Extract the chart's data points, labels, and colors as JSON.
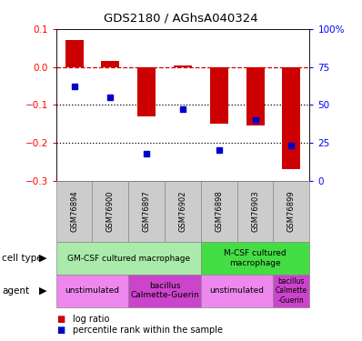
{
  "title": "GDS2180 / AGhsA040324",
  "samples": [
    "GSM76894",
    "GSM76900",
    "GSM76897",
    "GSM76902",
    "GSM76898",
    "GSM76903",
    "GSM76899"
  ],
  "log_ratio": [
    0.07,
    0.015,
    -0.13,
    0.005,
    -0.15,
    -0.155,
    -0.27
  ],
  "percentile": [
    62,
    55,
    18,
    47,
    20,
    40,
    23
  ],
  "ylim_left": [
    -0.3,
    0.1
  ],
  "ylim_right": [
    0,
    100
  ],
  "yticks_left": [
    -0.3,
    -0.2,
    -0.1,
    0.0,
    0.1
  ],
  "yticks_right": [
    0,
    25,
    50,
    75,
    100
  ],
  "ytick_labels_right": [
    "0",
    "25",
    "50",
    "75",
    "100%"
  ],
  "bar_color": "#cc0000",
  "dot_color": "#0000cc",
  "dashed_line_color": "#cc0000",
  "dotted_line_color": "#000000",
  "cell_type_groups": [
    {
      "label": "GM-CSF cultured macrophage",
      "start": 0,
      "end": 4,
      "color": "#aaeaaa"
    },
    {
      "label": "M-CSF cultured\nmacrophage",
      "start": 4,
      "end": 7,
      "color": "#44dd44"
    }
  ],
  "agent_groups": [
    {
      "label": "unstimulated",
      "start": 0,
      "end": 2,
      "color": "#ee88ee"
    },
    {
      "label": "bacillus\nCalmette-Guerin",
      "start": 2,
      "end": 4,
      "color": "#cc44cc"
    },
    {
      "label": "unstimulated",
      "start": 4,
      "end": 6,
      "color": "#ee88ee"
    },
    {
      "label": "bacillus\nCalmette\n-Guerin",
      "start": 6,
      "end": 7,
      "color": "#cc44cc"
    }
  ],
  "legend_bar_label": "log ratio",
  "legend_dot_label": "percentile rank within the sample",
  "cell_type_label": "cell type",
  "agent_label": "agent",
  "sample_box_color": "#cccccc",
  "bar_width": 0.5
}
